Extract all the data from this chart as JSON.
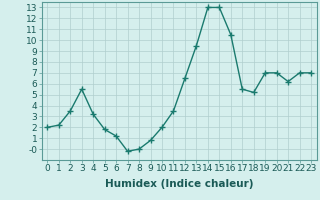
{
  "x": [
    0,
    1,
    2,
    3,
    4,
    5,
    6,
    7,
    8,
    9,
    10,
    11,
    12,
    13,
    14,
    15,
    16,
    17,
    18,
    19,
    20,
    21,
    22,
    23
  ],
  "y": [
    2,
    2.2,
    3.5,
    5.5,
    3.2,
    1.8,
    1.2,
    -0.2,
    0.0,
    0.8,
    2.0,
    3.5,
    6.5,
    9.5,
    13.0,
    13.0,
    10.5,
    5.5,
    5.2,
    7.0,
    7.0,
    6.2,
    7.0,
    7.0
  ],
  "line_color": "#1a7a6e",
  "marker": "+",
  "marker_size": 4,
  "marker_linewidth": 1.0,
  "xlabel": "Humidex (Indice chaleur)",
  "bg_color": "#d5efed",
  "grid_color": "#b0cece",
  "axis_color": "#5a9a96",
  "text_color": "#1a5a56",
  "xlim": [
    -0.5,
    23.5
  ],
  "ylim": [
    -1.0,
    13.5
  ],
  "yticks": [
    0,
    1,
    2,
    3,
    4,
    5,
    6,
    7,
    8,
    9,
    10,
    11,
    12,
    13
  ],
  "ytick_labels": [
    "-0",
    "1",
    "2",
    "3",
    "4",
    "5",
    "6",
    "7",
    "8",
    "9",
    "10",
    "11",
    "12",
    "13"
  ],
  "xticks": [
    0,
    1,
    2,
    3,
    4,
    5,
    6,
    7,
    8,
    9,
    10,
    11,
    12,
    13,
    14,
    15,
    16,
    17,
    18,
    19,
    20,
    21,
    22,
    23
  ],
  "tick_label_size": 6.5,
  "xlabel_size": 7.5,
  "linewidth": 1.0
}
